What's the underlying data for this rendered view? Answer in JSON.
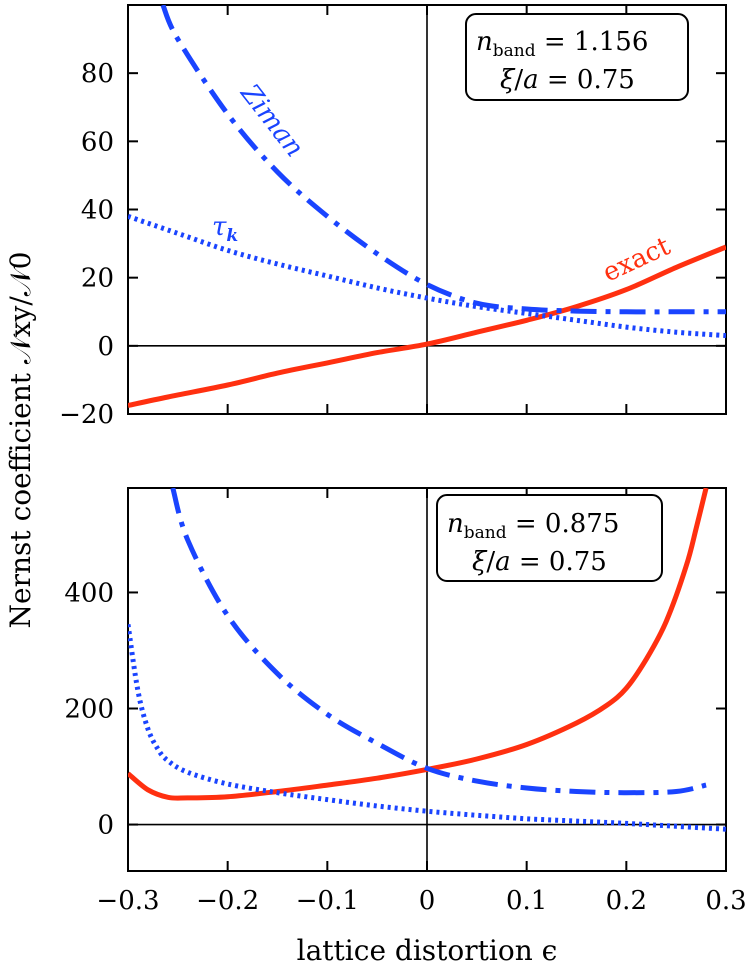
{
  "axis_titles": {
    "ylabel": "Nernst coefficient 𝒩xy/𝒩0",
    "xlabel": "lattice distortion ϵ"
  },
  "chart_data": [
    {
      "type": "line",
      "xlim": [
        -0.3,
        0.3
      ],
      "ylim": [
        -20,
        100
      ],
      "xticks": [
        -0.3,
        -0.2,
        -0.1,
        0,
        0.1,
        0.2,
        0.3
      ],
      "yticks": [
        -20,
        0,
        20,
        40,
        60,
        80
      ],
      "annotations": [
        "n_band = 1.156",
        "ξ/a = 0.75"
      ],
      "series": [
        {
          "name": "exact",
          "color": "#ff3010",
          "style": "solid",
          "x": [
            -0.3,
            -0.26,
            -0.2,
            -0.15,
            -0.1,
            -0.05,
            0,
            0.05,
            0.1,
            0.15,
            0.2,
            0.25,
            0.3
          ],
          "y": [
            -17.5,
            -15,
            -11.5,
            -8,
            -5,
            -2,
            0.5,
            4,
            7.5,
            11.5,
            16.5,
            23,
            29
          ]
        },
        {
          "name": "Ziman",
          "color": "#1a44ff",
          "style": "dashdot",
          "x": [
            -0.265,
            -0.25,
            -0.2,
            -0.15,
            -0.1,
            -0.05,
            0,
            0.05,
            0.1,
            0.15,
            0.2,
            0.25,
            0.3
          ],
          "y": [
            100,
            90,
            68,
            51,
            38,
            27,
            18,
            12.5,
            10.8,
            10.2,
            10,
            10,
            10
          ]
        },
        {
          "name": "τk",
          "color": "#1a44ff",
          "style": "dotted",
          "x": [
            -0.3,
            -0.25,
            -0.2,
            -0.15,
            -0.1,
            -0.05,
            0,
            0.05,
            0.1,
            0.15,
            0.2,
            0.25,
            0.3
          ],
          "y": [
            38,
            33,
            28,
            24,
            20.5,
            17,
            14,
            11.5,
            9.5,
            7.5,
            5.5,
            4,
            3
          ]
        }
      ]
    },
    {
      "type": "line",
      "xlim": [
        -0.3,
        0.3
      ],
      "ylim": [
        -80,
        580
      ],
      "xticks": [
        -0.3,
        -0.2,
        -0.1,
        0,
        0.1,
        0.2,
        0.3
      ],
      "yticks": [
        0,
        200,
        400
      ],
      "annotations": [
        "n_band = 0.875",
        "ξ/a = 0.75"
      ],
      "series": [
        {
          "name": "exact",
          "color": "#ff3010",
          "style": "solid",
          "x": [
            -0.3,
            -0.28,
            -0.26,
            -0.24,
            -0.2,
            -0.15,
            -0.1,
            -0.05,
            0,
            0.05,
            0.1,
            0.15,
            0.18,
            0.2,
            0.22,
            0.24,
            0.26,
            0.27,
            0.28
          ],
          "y": [
            88,
            60,
            47,
            46,
            48,
            57,
            68,
            80,
            95,
            113,
            138,
            175,
            205,
            235,
            285,
            350,
            445,
            510,
            580
          ]
        },
        {
          "name": "Ziman",
          "color": "#1a44ff",
          "style": "dashdot",
          "x": [
            -0.255,
            -0.24,
            -0.2,
            -0.15,
            -0.1,
            -0.05,
            0,
            0.05,
            0.1,
            0.15,
            0.2,
            0.25,
            0.28
          ],
          "y": [
            580,
            490,
            360,
            260,
            190,
            140,
            97,
            75,
            63,
            57,
            55,
            57,
            68
          ]
        },
        {
          "name": "τk",
          "color": "#1a44ff",
          "style": "dotted",
          "x": [
            -0.3,
            -0.29,
            -0.28,
            -0.27,
            -0.26,
            -0.24,
            -0.2,
            -0.15,
            -0.1,
            -0.05,
            0,
            0.05,
            0.1,
            0.15,
            0.2,
            0.25,
            0.3
          ],
          "y": [
            345,
            230,
            165,
            130,
            110,
            90,
            70,
            55,
            43,
            32,
            23,
            16,
            10,
            6,
            2,
            -3,
            -8
          ]
        }
      ]
    }
  ]
}
